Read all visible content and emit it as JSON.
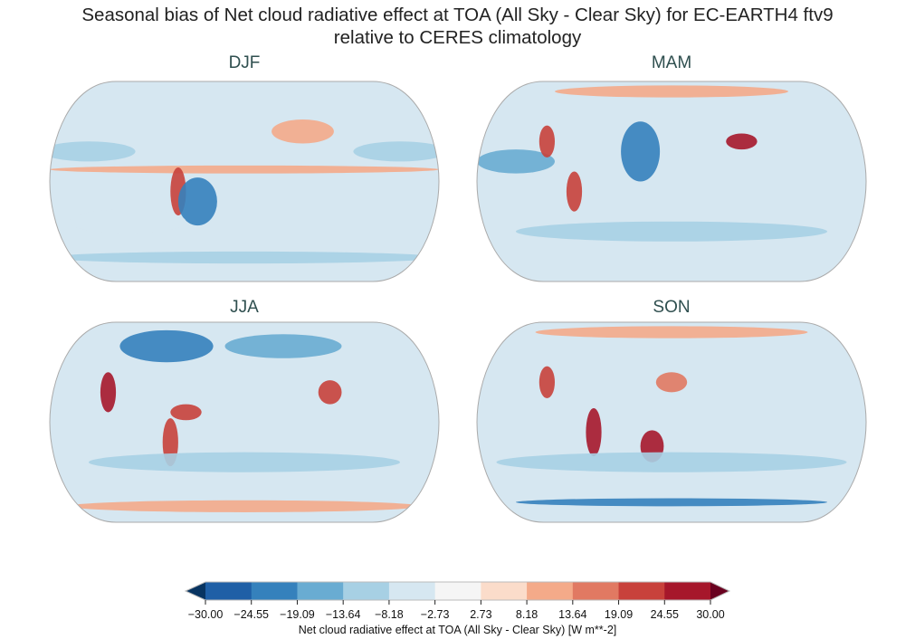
{
  "figure": {
    "title_line1": "Seasonal bias of Net cloud radiative effect at TOA (All Sky - Clear Sky) for EC-EARTH4 ftv9",
    "title_line2": "relative to CERES climatology"
  },
  "panels": [
    {
      "title": "DJF"
    },
    {
      "title": "MAM"
    },
    {
      "title": "JJA"
    },
    {
      "title": "SON"
    }
  ],
  "colorbar": {
    "label": "Net cloud radiative effect at TOA (All Sky - Clear Sky) [W m**-2]",
    "ticks": [
      "−30.00",
      "−24.55",
      "−19.09",
      "−13.64",
      "−8.18",
      "−2.73",
      "2.73",
      "8.18",
      "13.64",
      "19.09",
      "24.55",
      "30.00"
    ],
    "levels": [
      -30.0,
      -24.55,
      -19.09,
      -13.64,
      -8.18,
      -2.73,
      2.73,
      8.18,
      13.64,
      19.09,
      24.55,
      30.0
    ],
    "colors": [
      "#1f5fa6",
      "#3581bc",
      "#69acd2",
      "#a7d0e4",
      "#d6e7f1",
      "#f5f5f5",
      "#fbdcca",
      "#f4aa89",
      "#e17962",
      "#c8413b",
      "#a6172b"
    ],
    "under_color": "#083461",
    "over_color": "#6a0220",
    "colormap": "RdBu_r",
    "extend": "both"
  }
}
